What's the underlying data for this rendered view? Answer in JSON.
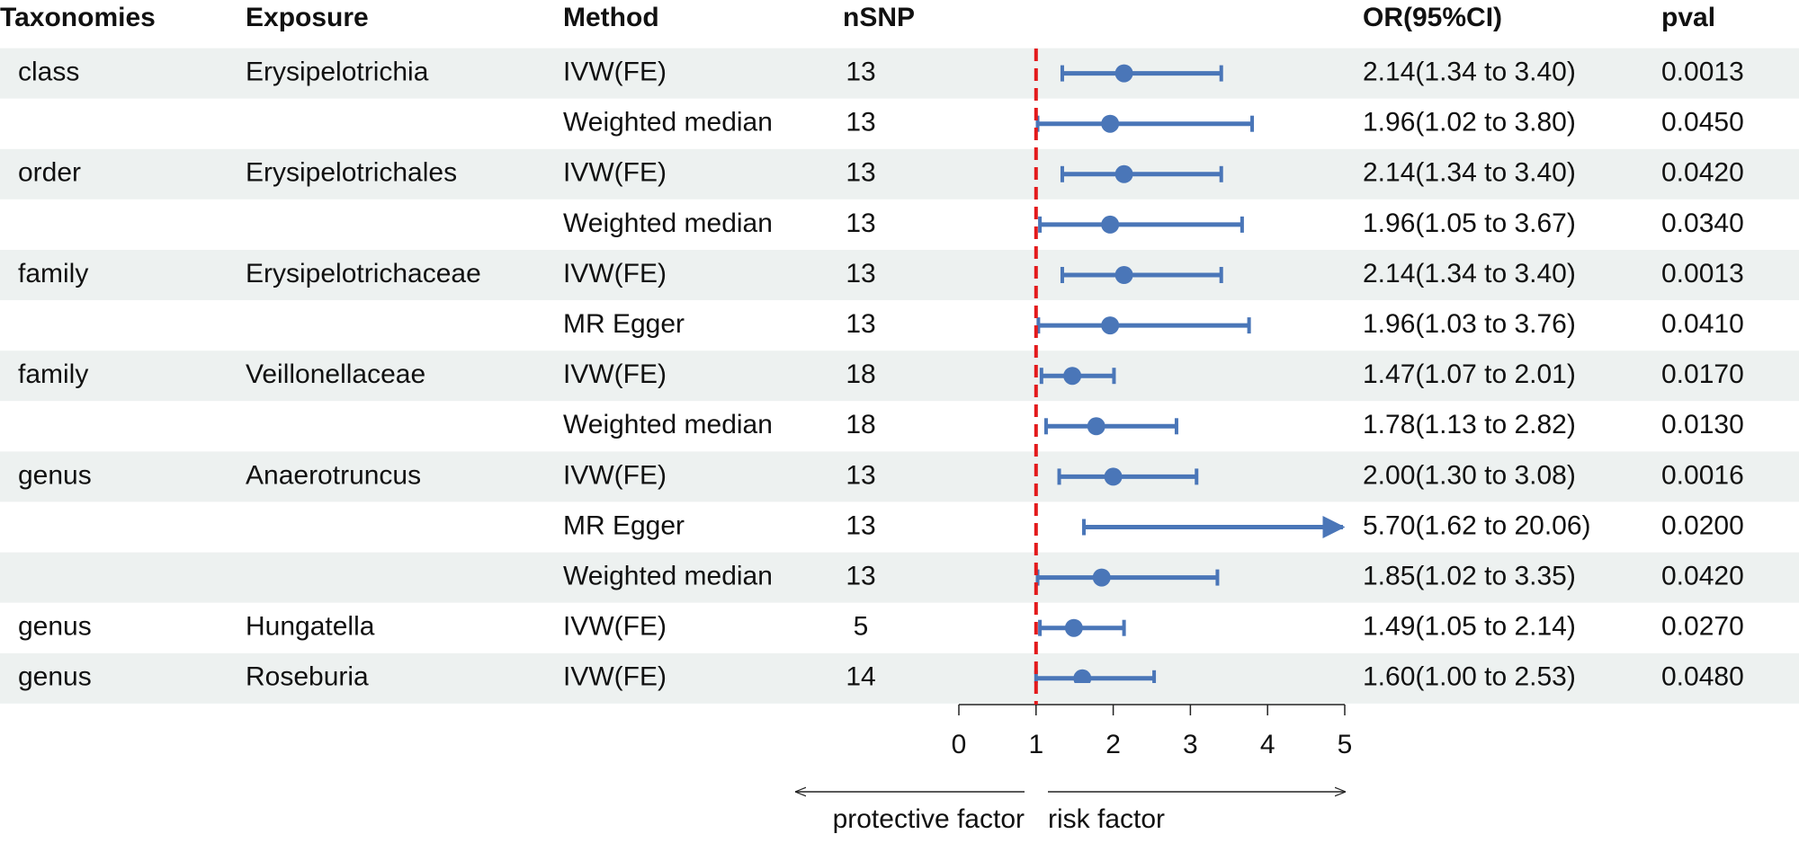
{
  "chart_data": {
    "type": "forest",
    "headers": {
      "taxonomy": "Taxonomies",
      "exposure": "Exposure",
      "method": "Method",
      "nsnp": "nSNP",
      "or": "OR(95%CI)",
      "pval": "pval"
    },
    "taxonomy": [
      "class",
      null,
      "order",
      null,
      "family",
      null,
      "family",
      null,
      "genus",
      null,
      null,
      "genus",
      "genus"
    ],
    "exposure": [
      "Erysipelotrichia",
      null,
      "Erysipelotrichales",
      null,
      "Erysipelotrichaceae",
      null,
      "Veillonellaceae",
      null,
      "Anaerotruncus",
      null,
      null,
      "Hungatella",
      "Roseburia"
    ],
    "method": [
      "IVW(FE)",
      "Weighted median",
      "IVW(FE)",
      "Weighted median",
      "IVW(FE)",
      "MR Egger",
      "IVW(FE)",
      "Weighted median",
      "IVW(FE)",
      "MR Egger",
      "Weighted median",
      "IVW(FE)",
      "IVW(FE)"
    ],
    "nsnp": [
      13,
      13,
      13,
      13,
      13,
      13,
      18,
      18,
      13,
      13,
      13,
      5,
      14
    ],
    "values": [
      2.14,
      1.96,
      2.14,
      1.96,
      2.14,
      1.96,
      1.47,
      1.78,
      2.0,
      5.7,
      1.85,
      1.49,
      1.6
    ],
    "lower": [
      1.34,
      1.02,
      1.34,
      1.05,
      1.34,
      1.03,
      1.07,
      1.13,
      1.3,
      1.62,
      1.02,
      1.05,
      1.0
    ],
    "upper": [
      3.4,
      3.8,
      3.4,
      3.67,
      3.4,
      3.76,
      2.01,
      2.82,
      3.08,
      20.06,
      3.35,
      2.14,
      2.53
    ],
    "value_labels": [
      "2.14(1.34 to 3.40)",
      "1.96(1.02 to 3.80)",
      "2.14(1.34 to 3.40)",
      "1.96(1.05 to 3.67)",
      "2.14(1.34 to 3.40)",
      "1.96(1.03 to 3.76)",
      "1.47(1.07 to 2.01)",
      "1.78(1.13 to 2.82)",
      "2.00(1.30 to 3.08)",
      "5.70(1.62 to 20.06)",
      "1.85(1.02 to 3.35)",
      "1.49(1.05 to 2.14)",
      "1.60(1.00 to 2.53)"
    ],
    "pval": [
      "0.0013",
      "0.0450",
      "0.0420",
      "0.0340",
      "0.0013",
      "0.0410",
      "0.0170",
      "0.0130",
      "0.0016",
      "0.0200",
      "0.0420",
      "0.0270",
      "0.0480"
    ],
    "xlim": [
      0,
      5
    ],
    "xticks": [
      0,
      1,
      2,
      3,
      4,
      5
    ],
    "reference": 1,
    "reference_color": "#e31a1c",
    "color": "#4a76b8",
    "annotations": {
      "left": "protective factor",
      "right": "risk factor"
    }
  }
}
